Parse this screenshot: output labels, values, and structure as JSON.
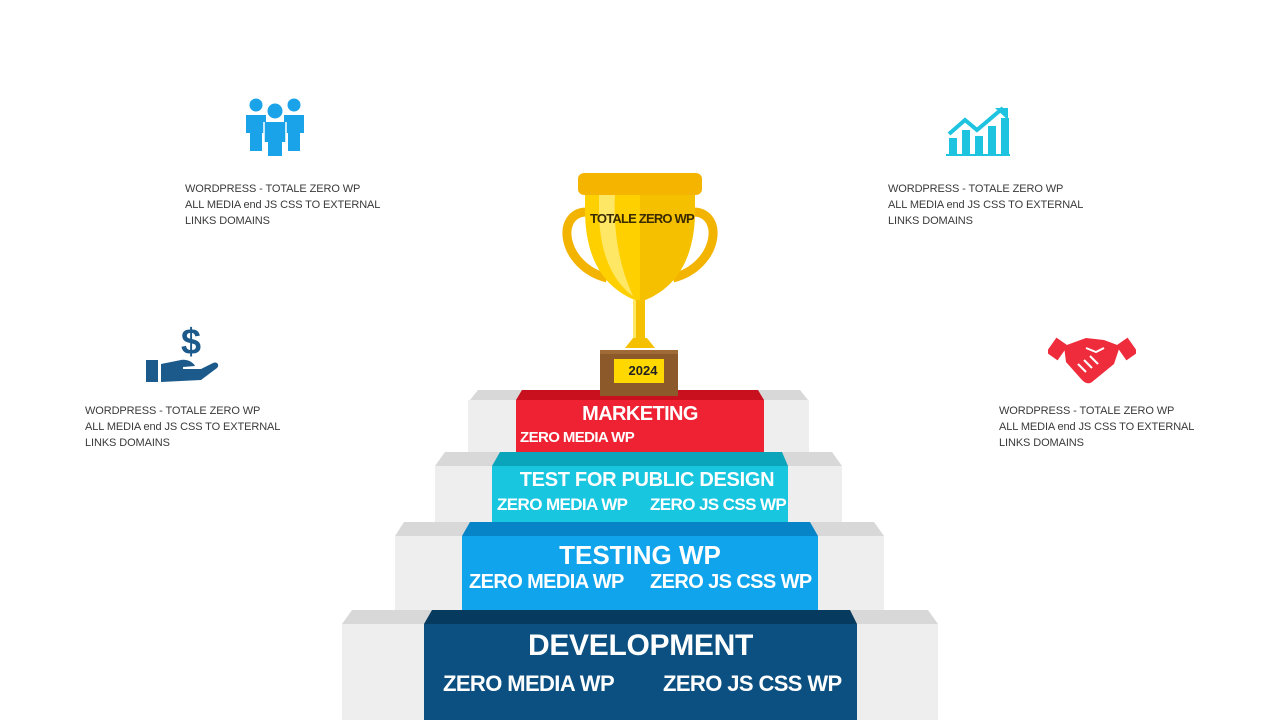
{
  "trophy": {
    "label": "TOTALE ZERO WP",
    "year": "2024"
  },
  "info_blocks": [
    {
      "id": "top-left",
      "icon": "team-icon",
      "color": "#1aa3e8",
      "lines": [
        "WORDPRESS - TOTALE ZERO WP",
        "ALL MEDIA  end JS CSS TO EXTERNAL",
        "LINKS DOMAINS"
      ]
    },
    {
      "id": "top-right",
      "icon": "growth-chart-icon",
      "color": "#1ec3e0",
      "lines": [
        "WORDPRESS - TOTALE ZERO WP",
        "ALL MEDIA  end JS CSS TO EXTERNAL",
        "LINKS DOMAINS"
      ]
    },
    {
      "id": "mid-left",
      "icon": "money-hand-icon",
      "color": "#1c5a8c",
      "lines": [
        "WORDPRESS - TOTALE ZERO WP",
        "ALL MEDIA  end JS CSS TO EXTERNAL",
        "LINKS DOMAINS"
      ]
    },
    {
      "id": "mid-right",
      "icon": "handshake-icon",
      "color": "#ee2c3c",
      "lines": [
        "WORDPRESS - TOTALE ZERO WP",
        "ALL MEDIA  end JS CSS TO EXTERNAL",
        "LINKS DOMAINS"
      ]
    }
  ],
  "steps": [
    {
      "title": "MARKETING",
      "sub_left": "ZERO MEDIA WP",
      "sub_right": "",
      "color": "#ee2233"
    },
    {
      "title": "TEST FOR PUBLIC DESIGN",
      "sub_left": "ZERO MEDIA WP",
      "sub_right": "ZERO JS CSS WP",
      "color": "#18c6df"
    },
    {
      "title": "TESTING  WP",
      "sub_left": "ZERO MEDIA WP",
      "sub_right": "ZERO JS CSS WP",
      "color": "#10a4ec"
    },
    {
      "title": "DEVELOPMENT",
      "sub_left": "ZERO MEDIA WP",
      "sub_right": "ZERO JS CSS WP",
      "color": "#0b5080"
    }
  ]
}
